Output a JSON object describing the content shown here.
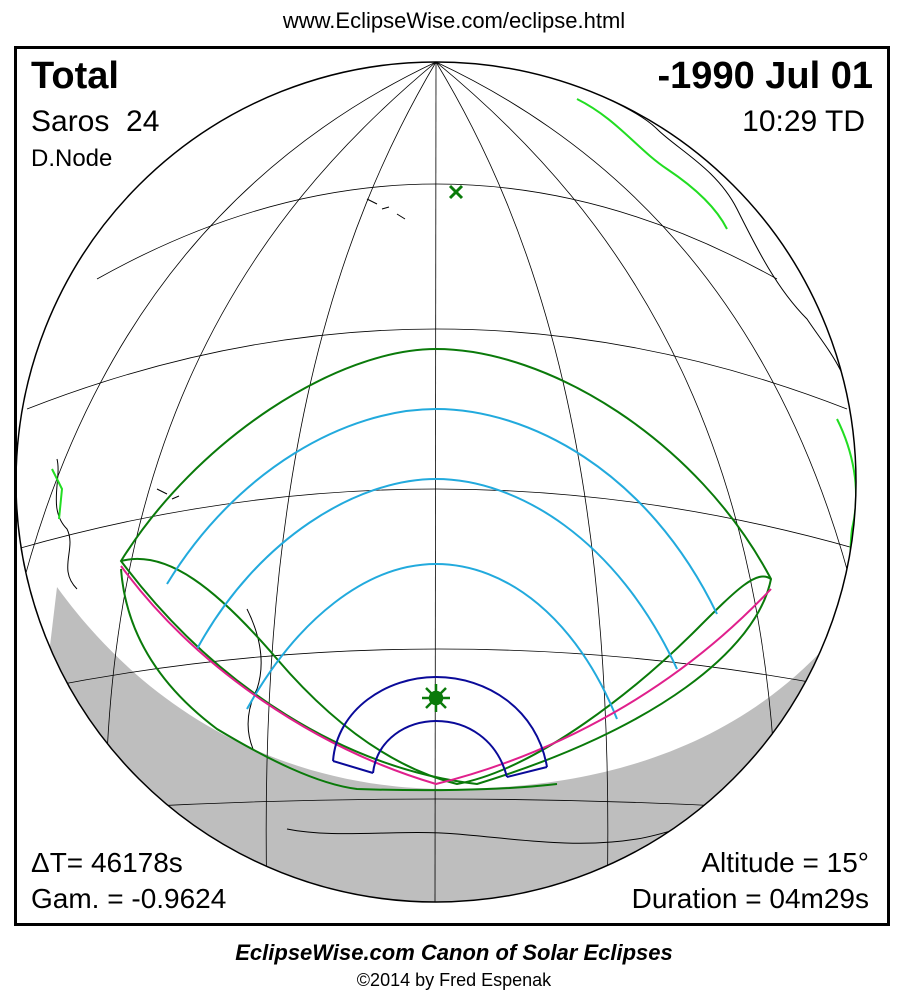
{
  "header": {
    "url": "www.EclipseWise.com/eclipse.html"
  },
  "eclipse": {
    "type": "Total",
    "date": "-1990 Jul 01",
    "saros_label": "Saros",
    "saros_number": "24",
    "time": "10:29 TD",
    "node": "D.Node"
  },
  "stats": {
    "delta_t": "ΔT=  46178s",
    "gamma": "Gam. = -0.9624",
    "altitude": "Altitude = 15°",
    "duration": "Duration = 04m29s"
  },
  "footer": {
    "title": "EclipseWise.com Canon of Solar Eclipses",
    "copyright": "©2014 by Fred Espenak"
  },
  "colors": {
    "penumbral_limits": "#0a7a0a",
    "magnitude_curves": "#22aadd",
    "central_limit": "#e0208c",
    "umbra_path": "#0a0a99",
    "coastline_highlight": "#22dd22",
    "night_side": "#bebebe",
    "graticule": "#000000"
  },
  "markers": {
    "subsolar_marker": "x-icon",
    "greatest_eclipse_marker": "sun-icon"
  }
}
